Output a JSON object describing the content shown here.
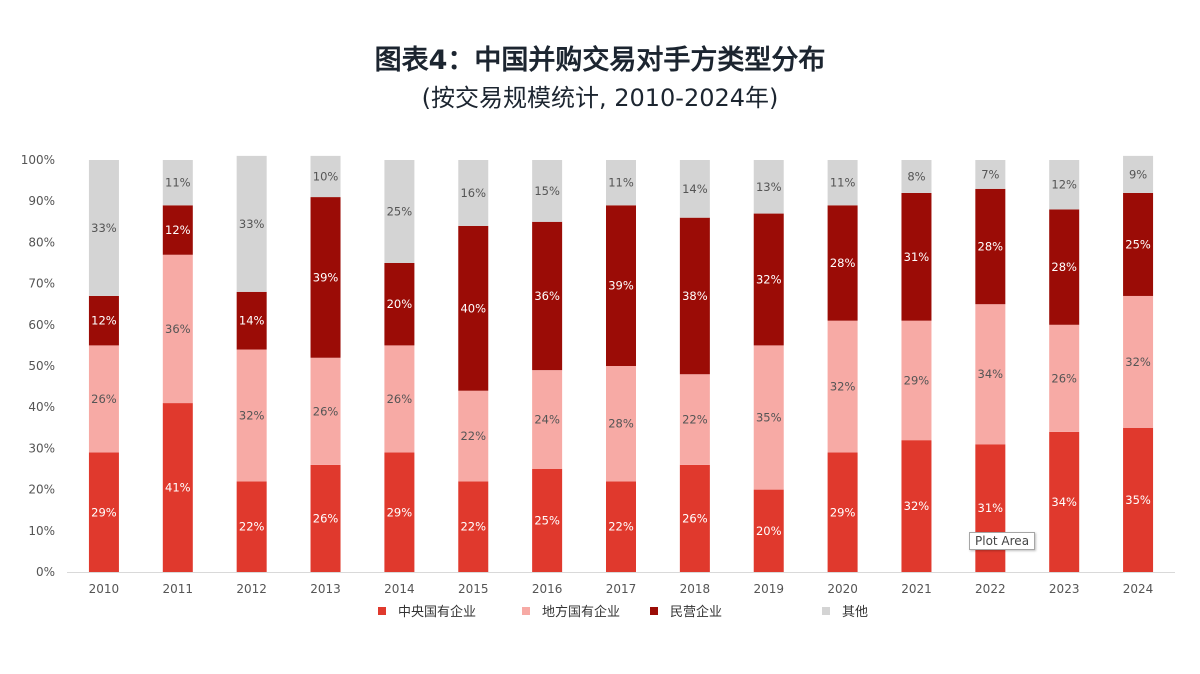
{
  "title": "图表4：中国并购交易对手方类型分布",
  "subtitle": "(按交易规模统计, 2010-2024年)",
  "tooltip": "Plot Area",
  "colors": {
    "central_soe": "#e0392d",
    "local_soe": "#f7aaa5",
    "private": "#9b0c06",
    "other": "#d4d4d4",
    "axis_text": "#555555",
    "label_dark": "#555555",
    "label_light": "#ffffff"
  },
  "chart_data": {
    "type": "bar",
    "stacked": true,
    "categories": [
      "2010",
      "2011",
      "2012",
      "2013",
      "2014",
      "2015",
      "2016",
      "2017",
      "2018",
      "2019",
      "2020",
      "2021",
      "2022",
      "2023",
      "2024"
    ],
    "ylim": [
      0,
      100
    ],
    "yticks": [
      "0%",
      "10%",
      "20%",
      "30%",
      "40%",
      "50%",
      "60%",
      "70%",
      "80%",
      "90%",
      "100%"
    ],
    "legend_position": "bottom",
    "series": [
      {
        "name": "中央国有企业",
        "color": "#e0392d",
        "label_color": "#ffffff",
        "values": [
          29,
          41,
          22,
          26,
          29,
          22,
          25,
          22,
          26,
          20,
          29,
          32,
          31,
          34,
          35
        ]
      },
      {
        "name": "地方国有企业",
        "color": "#f7aaa5",
        "label_color": "#555555",
        "values": [
          26,
          36,
          32,
          26,
          26,
          22,
          24,
          28,
          22,
          35,
          32,
          29,
          34,
          26,
          32
        ]
      },
      {
        "name": "民营企业",
        "color": "#9b0c06",
        "label_color": "#ffffff",
        "values": [
          12,
          12,
          14,
          39,
          20,
          40,
          36,
          39,
          38,
          32,
          28,
          31,
          28,
          28,
          25
        ]
      },
      {
        "name": "其他",
        "color": "#d4d4d4",
        "label_color": "#555555",
        "values": [
          33,
          11,
          33,
          10,
          25,
          16,
          15,
          11,
          14,
          13,
          11,
          8,
          7,
          12,
          9
        ]
      }
    ]
  }
}
